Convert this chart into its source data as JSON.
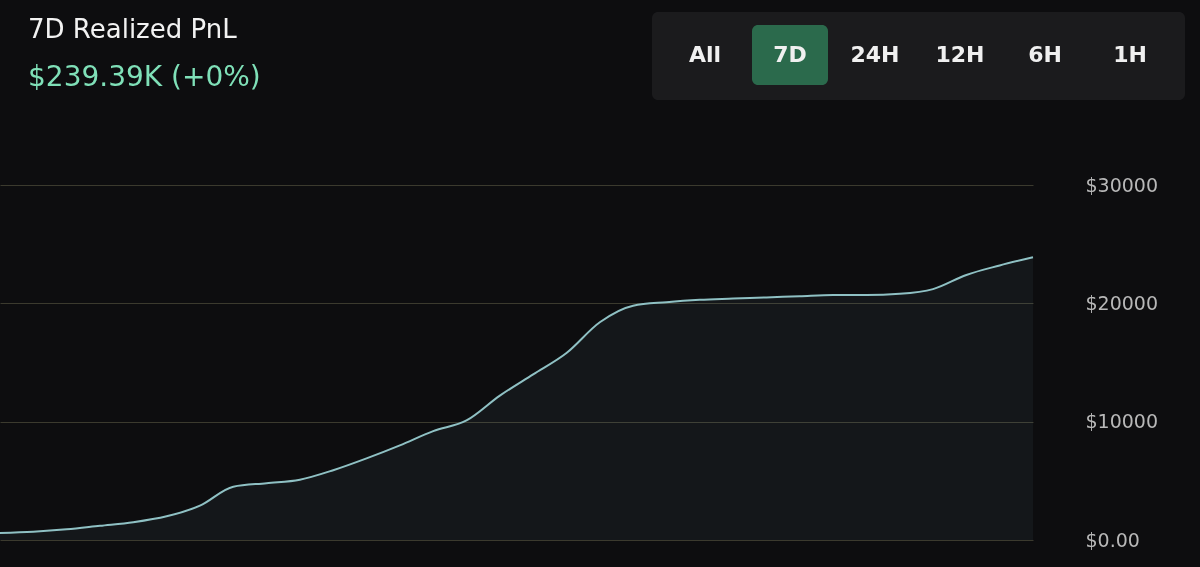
{
  "chart_data": {
    "type": "area",
    "title": "7D Realized PnL",
    "subtitle": "$239.39K (+0%)",
    "annotations": [
      "All",
      "7D",
      "24H",
      "12H",
      "6H",
      "1H"
    ],
    "categories": [
      null,
      null,
      null,
      null,
      null,
      null,
      null,
      null,
      null,
      null,
      null,
      null,
      null,
      null,
      null,
      null,
      null,
      null,
      null,
      null,
      null,
      null,
      null,
      null,
      null,
      null,
      null,
      null,
      null,
      null,
      null,
      null
    ],
    "series": [
      {
        "color": "#8fc1c4",
        "values": [
          600,
          700,
          900,
          1200,
          1500,
          2000,
          2900,
          4500,
          4800,
          5100,
          5900,
          6900,
          8000,
          9200,
          10100,
          12200,
          14000,
          15800,
          18400,
          19800,
          20100,
          20300,
          20400,
          20500,
          20600,
          20700,
          20700,
          20800,
          21200,
          22400,
          23200,
          23900
        ]
      }
    ],
    "ylim": [
      0,
      30000
    ],
    "yticks": [
      {
        "value": 0,
        "label": "$0.00"
      },
      {
        "value": 10000,
        "label": "$10000"
      },
      {
        "value": 20000,
        "label": "$20000"
      },
      {
        "value": 30000,
        "label": "$30000"
      }
    ],
    "grid": "y"
  }
}
